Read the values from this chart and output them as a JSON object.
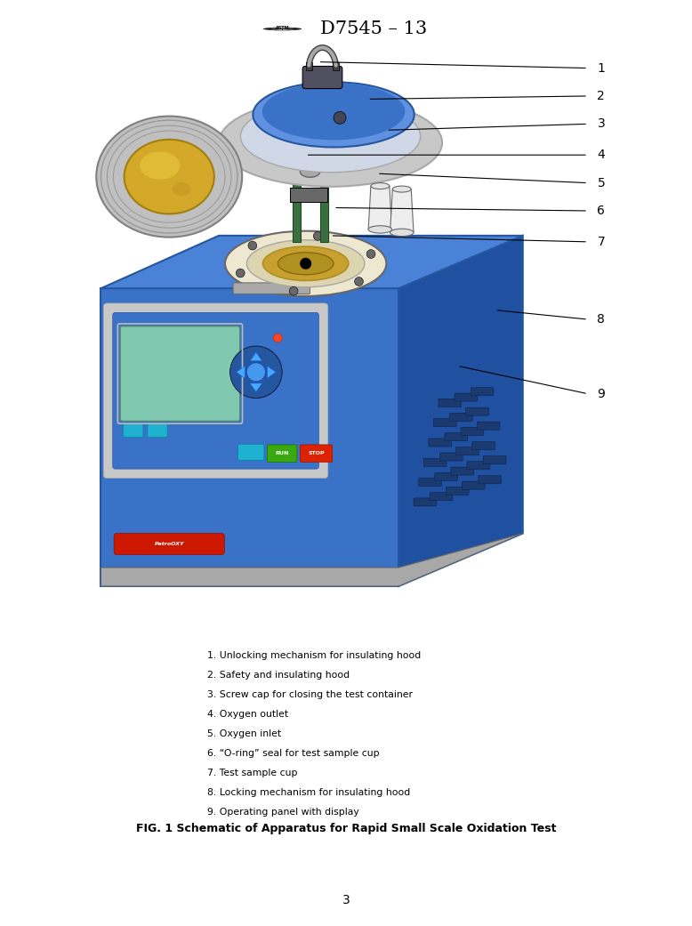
{
  "title": "D7545 – 13",
  "background_color": "#ffffff",
  "fig_width": 7.78,
  "fig_height": 10.41,
  "dpi": 100,
  "caption_lines": [
    "1. Unlocking mechanism for insulating hood",
    "2. Safety and insulating hood",
    "3. Screw cap for closing the test container",
    "4. Oxygen outlet",
    "5. Oxygen inlet",
    "6. “O-ring” seal for test sample cup",
    "7. Test sample cup",
    "8. Locking mechanism for insulating hood",
    "9. Operating panel with display"
  ],
  "fig_caption": "FIG. 1 Schematic of Apparatus for Rapid Small Scale Oxidation Test",
  "page_number": "3",
  "callouts": [
    [
      4.55,
      9.45,
      9.05,
      9.35,
      "1"
    ],
    [
      5.35,
      8.85,
      9.05,
      8.9,
      "2"
    ],
    [
      5.65,
      8.35,
      9.05,
      8.45,
      "3"
    ],
    [
      4.35,
      7.95,
      9.05,
      7.95,
      "4"
    ],
    [
      5.5,
      7.65,
      9.05,
      7.5,
      "5"
    ],
    [
      4.8,
      7.1,
      9.05,
      7.05,
      "6"
    ],
    [
      4.75,
      6.65,
      9.05,
      6.55,
      "7"
    ],
    [
      7.4,
      5.45,
      9.05,
      5.3,
      "8"
    ],
    [
      6.8,
      4.55,
      9.05,
      4.1,
      "9"
    ]
  ],
  "blue_main": "#3a72c8",
  "blue_dark": "#2556a0",
  "blue_light": "#6090e0",
  "blue_top": "#4a82d8",
  "blue_side": "#2050a0",
  "gray_light": "#d8d8d8",
  "gray_med": "#a8a8a8",
  "gray_dark": "#686868",
  "silver": "#c8c8c8",
  "cream": "#eee8d0",
  "cream2": "#ddd4b0",
  "gold": "#c8a030",
  "gold2": "#b09020",
  "green_lcd": "#80c8b0",
  "teal_btn": "#20b0d0",
  "green_btn": "#38aa10",
  "red_btn": "#dd2200",
  "red_brand": "#cc1800",
  "black": "#000000",
  "white": "#ffffff",
  "steel_blue": "#4a6888"
}
